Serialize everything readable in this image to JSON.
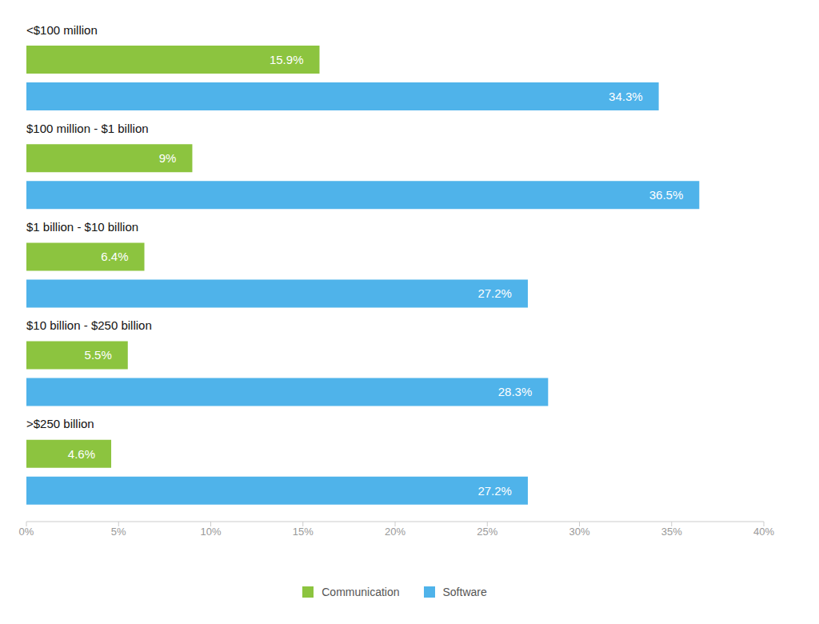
{
  "chart_data": {
    "type": "bar",
    "orientation": "horizontal",
    "categories": [
      "<$100 million",
      "$100 million - $1 billion",
      "$1 billion - $10 billion",
      "$10 billion - $250 billion",
      ">$250 billion"
    ],
    "series": [
      {
        "name": "Communication",
        "color": "#8cc43f",
        "values": [
          15.9,
          9,
          6.4,
          5.5,
          4.6
        ],
        "value_labels": [
          "15.9%",
          "9%",
          "6.4%",
          "5.5%",
          "4.6%"
        ]
      },
      {
        "name": "Software",
        "color": "#4fb3ea",
        "values": [
          34.3,
          36.5,
          27.2,
          28.3,
          27.2
        ],
        "value_labels": [
          "34.3%",
          "36.5%",
          "27.2%",
          "28.3%",
          "27.2%"
        ]
      }
    ],
    "xlim": [
      0,
      40
    ],
    "xticks": [
      {
        "value": 0,
        "label": "0%"
      },
      {
        "value": 5,
        "label": "5%"
      },
      {
        "value": 10,
        "label": "10%"
      },
      {
        "value": 15,
        "label": "15%"
      },
      {
        "value": 20,
        "label": "20%"
      },
      {
        "value": 25,
        "label": "25%"
      },
      {
        "value": 30,
        "label": "30%"
      },
      {
        "value": 35,
        "label": "35%"
      },
      {
        "value": 40,
        "label": "40%"
      }
    ],
    "data_labels": true,
    "grid": false,
    "legend": "bottom"
  }
}
